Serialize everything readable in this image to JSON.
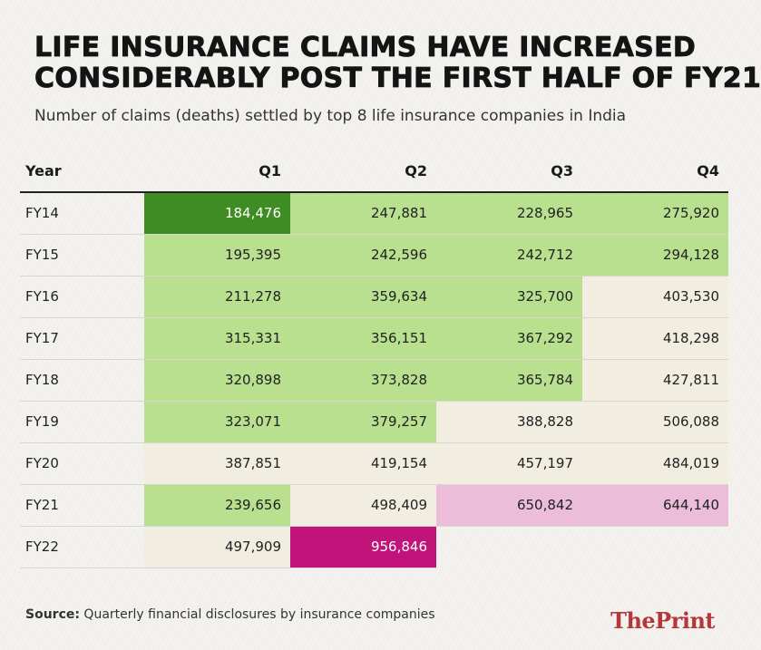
{
  "title_line1": "LIFE INSURANCE CLAIMS HAVE INCREASED",
  "title_line2": "CONSIDERABLY POST THE FIRST HALF OF FY21",
  "subtitle": "Number of claims (deaths) settled by top 8 life insurance companies in India",
  "source_label": "Source:",
  "source_text": "Quarterly financial disclosures by insurance companies",
  "logo": "ThePrint",
  "colors": {
    "cream": "#f1ede1",
    "light_green": "#b8e08f",
    "dark_green": "#3f8c23",
    "light_pink": "#ecbdd8",
    "magenta": "#c2137a"
  },
  "chart_data": {
    "type": "table",
    "columns": [
      "Year",
      "Q1",
      "Q2",
      "Q3",
      "Q4"
    ],
    "rows": [
      {
        "year": "FY14",
        "values": [
          "184,476",
          "247,881",
          "228,965",
          "275,920"
        ],
        "colors": [
          "dark_green",
          "light_green",
          "light_green",
          "light_green"
        ]
      },
      {
        "year": "FY15",
        "values": [
          "195,395",
          "242,596",
          "242,712",
          "294,128"
        ],
        "colors": [
          "light_green",
          "light_green",
          "light_green",
          "light_green"
        ]
      },
      {
        "year": "FY16",
        "values": [
          "211,278",
          "359,634",
          "325,700",
          "403,530"
        ],
        "colors": [
          "light_green",
          "light_green",
          "light_green",
          "cream"
        ]
      },
      {
        "year": "FY17",
        "values": [
          "315,331",
          "356,151",
          "367,292",
          "418,298"
        ],
        "colors": [
          "light_green",
          "light_green",
          "light_green",
          "cream"
        ]
      },
      {
        "year": "FY18",
        "values": [
          "320,898",
          "373,828",
          "365,784",
          "427,811"
        ],
        "colors": [
          "light_green",
          "light_green",
          "light_green",
          "cream"
        ]
      },
      {
        "year": "FY19",
        "values": [
          "323,071",
          "379,257",
          "388,828",
          "506,088"
        ],
        "colors": [
          "light_green",
          "light_green",
          "cream",
          "cream"
        ]
      },
      {
        "year": "FY20",
        "values": [
          "387,851",
          "419,154",
          "457,197",
          "484,019"
        ],
        "colors": [
          "cream",
          "cream",
          "cream",
          "cream"
        ]
      },
      {
        "year": "FY21",
        "values": [
          "239,656",
          "498,409",
          "650,842",
          "644,140"
        ],
        "colors": [
          "light_green",
          "cream",
          "light_pink",
          "light_pink"
        ]
      },
      {
        "year": "FY22",
        "values": [
          "497,909",
          "956,846",
          "",
          ""
        ],
        "colors": [
          "cream",
          "magenta",
          "none",
          "none"
        ]
      }
    ]
  }
}
